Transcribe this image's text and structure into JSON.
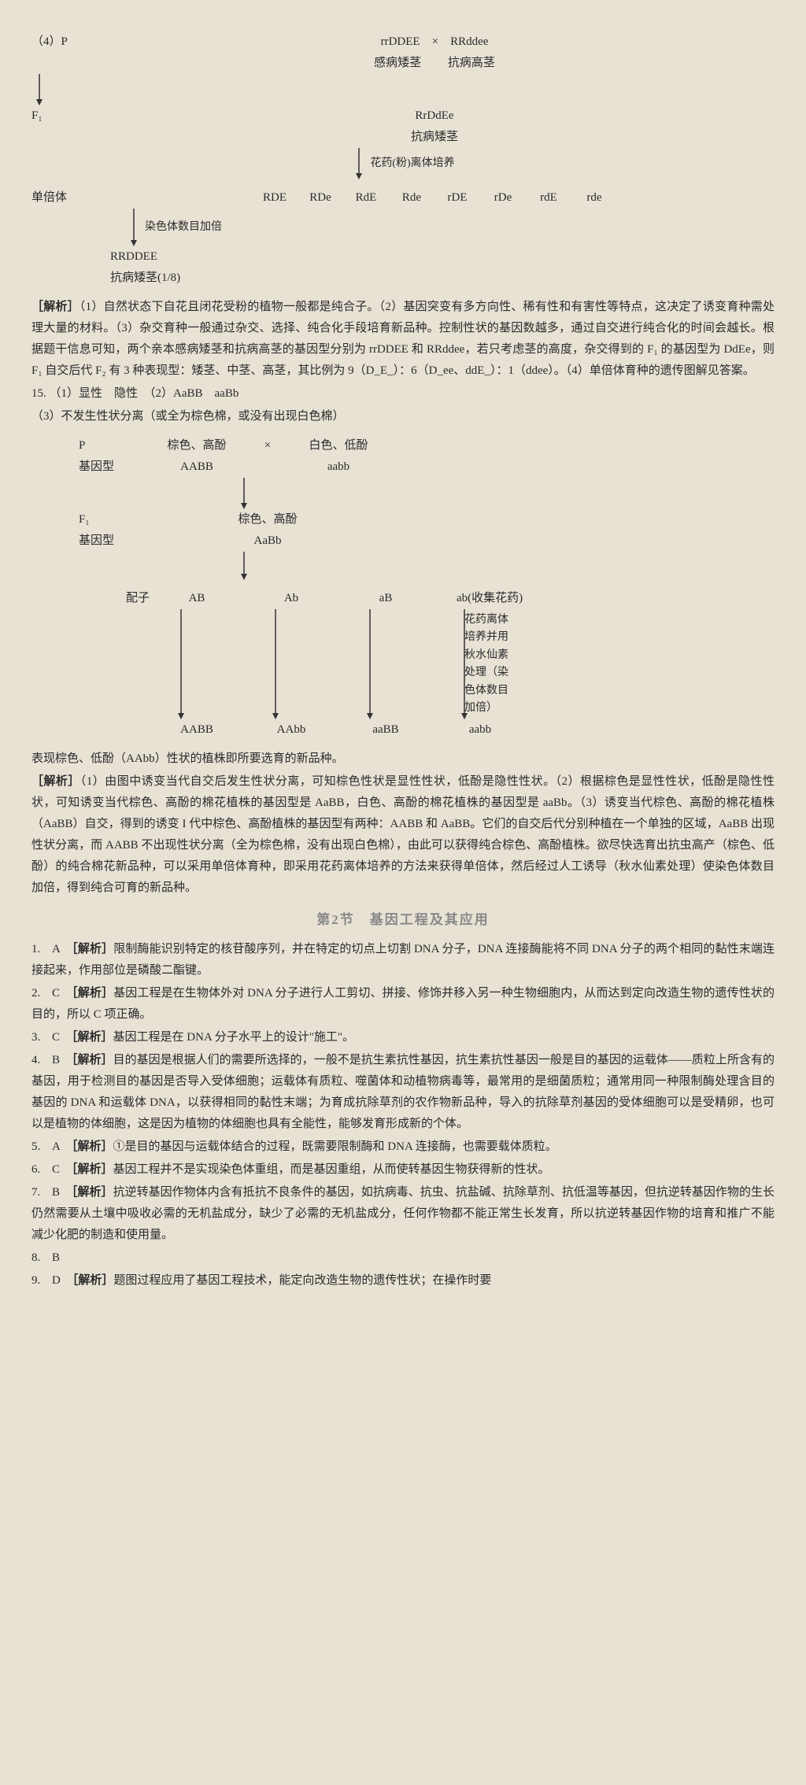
{
  "q4": {
    "label": "（4）P",
    "p1_geno": "rrDDEE",
    "cross": "×",
    "p2_geno": "RRddee",
    "p1_pheno": "感病矮茎",
    "p2_pheno": "抗病高茎",
    "f1_label": "F₁",
    "f1_geno": "RrDdEe",
    "f1_pheno": "抗病矮茎",
    "anther_culture": "花药(粉)离体培养",
    "haploid_label": "单倍体",
    "haploids": [
      "RDE",
      "RDe",
      "RdE",
      "Rde",
      "rDE",
      "rDe",
      "rdE",
      "rde"
    ],
    "chromosome_double": "染色体数目加倍",
    "result_geno": "RRDDEE",
    "result_pheno": "抗病矮茎(1/8)",
    "analysis_label": "［解析］",
    "analysis": "（1）自然状态下自花且闭花受粉的植物一般都是纯合子。（2）基因突变有多方向性、稀有性和有害性等特点，这决定了诱变育种需处理大量的材料。（3）杂交育种一般通过杂交、选择、纯合化手段培育新品种。控制性状的基因数越多，通过自交进行纯合化的时间会越长。根据题干信息可知，两个亲本感病矮茎和抗病高茎的基因型分别为 rrDDEE 和 RRddee，若只考虑茎的高度，杂交得到的 F₁ 的基因型为 DdEe，则 F₁ 自交后代 F₂ 有 3 种表现型：矮茎、中茎、高茎，其比例为 9（D_E_）：6（D_ee、ddE_）：1（ddee）。（4）单倍体育种的遗传图解见答案。"
  },
  "q15": {
    "num": "15.",
    "part1": "（1）显性　隐性　（2）AaBB　aaBb",
    "part3": "（3）不发生性状分离（或全为棕色棉，或没有出现白色棉）",
    "p_label": "P",
    "p1_pheno": "棕色、高酚",
    "cross": "×",
    "p2_pheno": "白色、低酚",
    "geno_label": "基因型",
    "p1_geno": "AABB",
    "p2_geno": "aabb",
    "f1_label": "F₁",
    "f1_pheno": "棕色、高酚",
    "f1_geno": "AaBb",
    "gamete_label": "配子",
    "gametes": [
      "AB",
      "Ab",
      "aB",
      "ab(收集花药)"
    ],
    "side_text": "花药离体\n培养并用\n秋水仙素\n处理（染\n色体数目\n加倍）",
    "results": [
      "AABB",
      "AAbb",
      "aaBB",
      "aabb"
    ],
    "conclusion": "表现棕色、低酚（AAbb）性状的植株即所要选育的新品种。",
    "analysis_label": "［解析］",
    "analysis": "（1）由图中诱变当代自交后发生性状分离，可知棕色性状是显性性状，低酚是隐性性状。（2）根据棕色是显性性状，低酚是隐性性状，可知诱变当代棕色、高酚的棉花植株的基因型是 AaBB，白色、高酚的棉花植株的基因型是 aaBb。（3）诱变当代棕色、高酚的棉花植株（AaBB）自交，得到的诱变 I 代中棕色、高酚植株的基因型有两种：AABB 和 AaBB。它们的自交后代分别种植在一个单独的区域，AaBB 出现性状分离，而 AABB 不出现性状分离（全为棕色棉，没有出现白色棉），由此可以获得纯合棕色、高酚植株。欲尽快选育出抗虫高产（棕色、低酚）的纯合棉花新品种，可以采用单倍体育种，即采用花药离体培养的方法来获得单倍体，然后经过人工诱导（秋水仙素处理）使染色体数目加倍，得到纯合可育的新品种。"
  },
  "section2_title": "第2节　基因工程及其应用",
  "answers": [
    {
      "num": "1.",
      "ans": "A",
      "label": "［解析］",
      "text": "限制酶能识别特定的核苷酸序列，并在特定的切点上切割 DNA 分子，DNA 连接酶能将不同 DNA 分子的两个相同的黏性末端连接起来，作用部位是磷酸二酯键。"
    },
    {
      "num": "2.",
      "ans": "C",
      "label": "［解析］",
      "text": "基因工程是在生物体外对 DNA 分子进行人工剪切、拼接、修饰并移入另一种生物细胞内，从而达到定向改造生物的遗传性状的目的，所以 C 项正确。"
    },
    {
      "num": "3.",
      "ans": "C",
      "label": "［解析］",
      "text": "基因工程是在 DNA 分子水平上的设计\"施工\"。"
    },
    {
      "num": "4.",
      "ans": "B",
      "label": "［解析］",
      "text": "目的基因是根据人们的需要所选择的，一般不是抗生素抗性基因，抗生素抗性基因一般是目的基因的运载体——质粒上所含有的基因，用于检测目的基因是否导入受体细胞；运载体有质粒、噬菌体和动植物病毒等，最常用的是细菌质粒；通常用同一种限制酶处理含目的基因的 DNA 和运载体 DNA，以获得相同的黏性末端；为育成抗除草剂的农作物新品种，导入的抗除草剂基因的受体细胞可以是受精卵，也可以是植物的体细胞，这是因为植物的体细胞也具有全能性，能够发育形成新的个体。"
    },
    {
      "num": "5.",
      "ans": "A",
      "label": "［解析］",
      "text": "①是目的基因与运载体结合的过程，既需要限制酶和 DNA 连接酶，也需要载体质粒。"
    },
    {
      "num": "6.",
      "ans": "C",
      "label": "［解析］",
      "text": "基因工程并不是实现染色体重组，而是基因重组，从而使转基因生物获得新的性状。"
    },
    {
      "num": "7.",
      "ans": "B",
      "label": "［解析］",
      "text": "抗逆转基因作物体内含有抵抗不良条件的基因，如抗病毒、抗虫、抗盐碱、抗除草剂、抗低温等基因，但抗逆转基因作物的生长仍然需要从土壤中吸收必需的无机盐成分，缺少了必需的无机盐成分，任何作物都不能正常生长发育，所以抗逆转基因作物的培育和推广不能减少化肥的制造和使用量。"
    },
    {
      "num": "8.",
      "ans": "B",
      "label": "",
      "text": ""
    },
    {
      "num": "9.",
      "ans": "D",
      "label": "［解析］",
      "text": "题图过程应用了基因工程技术，能定向改造生物的遗传性状；在操作时要"
    }
  ]
}
